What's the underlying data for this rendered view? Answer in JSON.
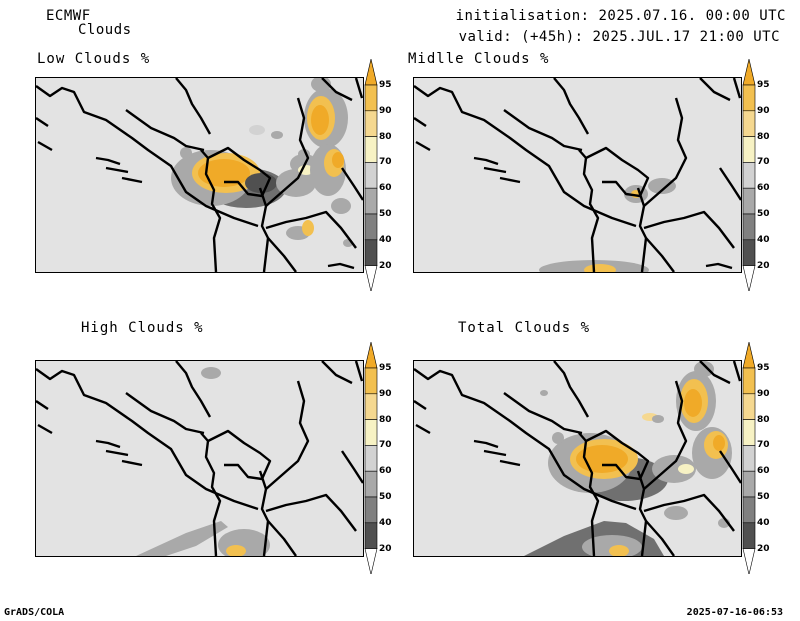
{
  "header": {
    "model": "ECMWF",
    "product": "Clouds",
    "init": "initialisation: 2025.07.16. 00:00 UTC",
    "valid": "valid: (+45h): 2025.JUL.17 21:00 UTC"
  },
  "panels": {
    "low": "Low Clouds %",
    "middle": "Midlle Clouds %",
    "high": "High Clouds %",
    "total": "Total Clouds %"
  },
  "colorbar": {
    "levels": [
      "95",
      "90",
      "80",
      "70",
      "60",
      "50",
      "40",
      "20"
    ],
    "colors": [
      "#f0aa28",
      "#f2c050",
      "#f5d890",
      "#f7f2c4",
      "#d2d2d2",
      "#a9a9a9",
      "#808080",
      "#505050",
      "#ffffff"
    ]
  },
  "footer": {
    "left": "GrADS/COLA",
    "right": "2025-07-16-06:53"
  }
}
